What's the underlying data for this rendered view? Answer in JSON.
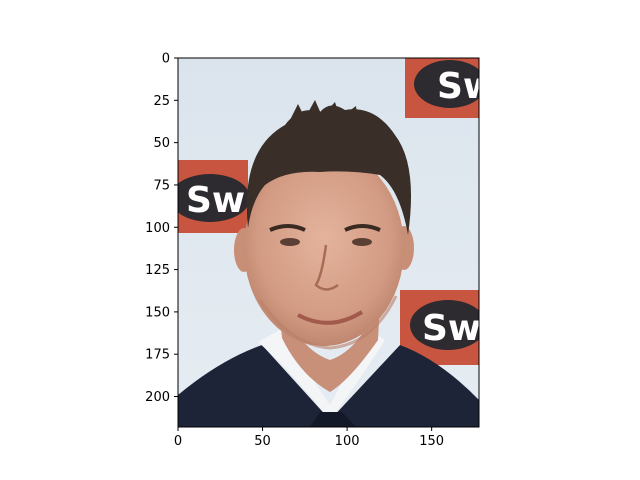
{
  "figure": {
    "x_ticks": [
      "0",
      "50",
      "100",
      "150"
    ],
    "y_ticks": [
      "0",
      "25",
      "50",
      "75",
      "100",
      "125",
      "150",
      "175",
      "200"
    ],
    "xlim": [
      0,
      178
    ],
    "ylim": [
      218,
      0
    ],
    "image_width": 178,
    "image_height": 218
  },
  "photo": {
    "subject": "portrait of a smiling man with dark spiked hair in a navy suit, white shirt and dark tie",
    "backdrop_logo_text": "Sw",
    "colors": {
      "background": "#dfe7ef",
      "logo_red": "#c8553f",
      "logo_oval": "#2d2a30",
      "hair": "#3a2f28",
      "skin": "#d9a68f",
      "suit": "#1e2438",
      "shirt": "#f4f5f7"
    }
  }
}
